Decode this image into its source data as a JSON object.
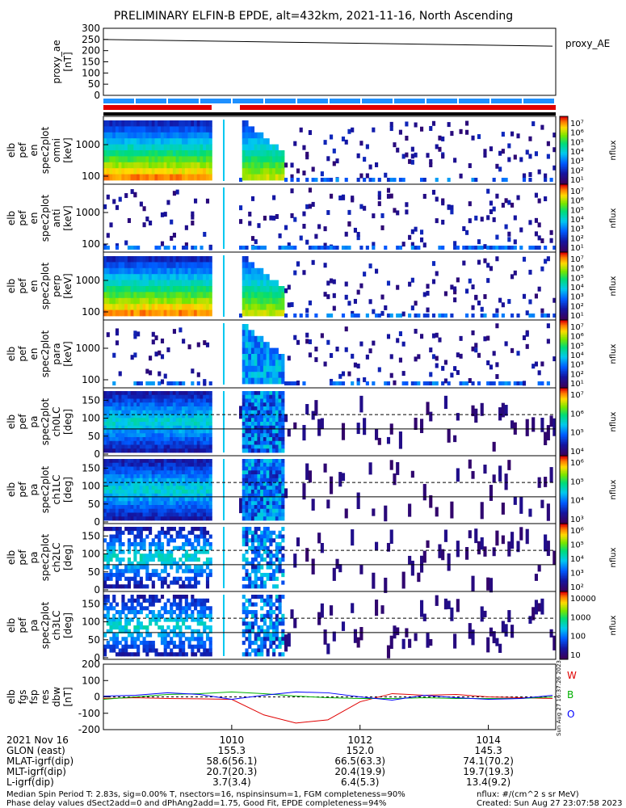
{
  "title": "PRELIMINARY ELFIN-B EPDE, alt=432km, 2021-11-16, North Ascending",
  "proxy_panel": {
    "ylabel": [
      "proxy_ae",
      "[nT]"
    ],
    "legend": "proxy_AE",
    "ylim": [
      0,
      300
    ],
    "yticks": [
      "300",
      "250",
      "200",
      "150",
      "100",
      "50",
      "0"
    ]
  },
  "spectro_panels": [
    {
      "ylabel": [
        "elb",
        "pef",
        "en",
        "spec2plot",
        "omni",
        "[keV]"
      ],
      "yticks": [
        "1000",
        "100"
      ],
      "cbar_ticks": [
        "10⁷",
        "10⁶",
        "10⁵",
        "10⁴",
        "10³",
        "10²",
        "10¹"
      ],
      "cbar_label": "nflux",
      "kind": "energy"
    },
    {
      "ylabel": [
        "elb",
        "pef",
        "en",
        "spec2plot",
        "anti",
        "[keV]"
      ],
      "yticks": [
        "1000",
        "100"
      ],
      "cbar_ticks": [
        "10⁷",
        "10⁶",
        "10⁵",
        "10⁴",
        "10³",
        "10²",
        "10¹"
      ],
      "cbar_label": "nflux",
      "kind": "energy"
    },
    {
      "ylabel": [
        "elb",
        "pef",
        "en",
        "spec2plot",
        "perp",
        "[keV]"
      ],
      "yticks": [
        "1000",
        "100"
      ],
      "cbar_ticks": [
        "10⁷",
        "10⁶",
        "10⁵",
        "10⁴",
        "10³",
        "10²",
        "10¹"
      ],
      "cbar_label": "nflux",
      "kind": "energy"
    },
    {
      "ylabel": [
        "elb",
        "pef",
        "en",
        "spec2plot",
        "para",
        "[keV]"
      ],
      "yticks": [
        "1000",
        "100"
      ],
      "cbar_ticks": [
        "10⁷",
        "10⁶",
        "10⁵",
        "10⁴",
        "10³",
        "10²",
        "10¹"
      ],
      "cbar_label": "nflux",
      "kind": "energy"
    },
    {
      "ylabel": [
        "elb",
        "pef",
        "pa",
        "spec2plot",
        "ch0LC",
        "[deg]"
      ],
      "yticks": [
        "150",
        "100",
        "50",
        "0"
      ],
      "cbar_ticks": [
        "10⁷",
        "10⁶",
        "10⁵",
        "10⁴"
      ],
      "cbar_label": "nflux",
      "kind": "pa"
    },
    {
      "ylabel": [
        "elb",
        "pef",
        "pa",
        "spec2plot",
        "ch1LC",
        "[deg]"
      ],
      "yticks": [
        "150",
        "100",
        "50",
        "0"
      ],
      "cbar_ticks": [
        "10⁶",
        "10⁵",
        "10⁴",
        "10³"
      ],
      "cbar_label": "nflux",
      "kind": "pa"
    },
    {
      "ylabel": [
        "elb",
        "pef",
        "pa",
        "spec2plot",
        "ch2LC",
        "[deg]"
      ],
      "yticks": [
        "150",
        "100",
        "50",
        "0"
      ],
      "cbar_ticks": [
        "10⁶",
        "10⁵",
        "10⁴",
        "10³",
        "10²"
      ],
      "cbar_label": "nflux",
      "kind": "pa"
    },
    {
      "ylabel": [
        "elb",
        "pef",
        "pa",
        "spec2plot",
        "ch3LC",
        "[deg]"
      ],
      "yticks": [
        "150",
        "100",
        "50",
        "0"
      ],
      "cbar_ticks": [
        "10000",
        "1000",
        "100",
        "10"
      ],
      "cbar_label": "nflux",
      "kind": "pa"
    }
  ],
  "bfield_panel": {
    "ylabel": [
      "elb",
      "fgs",
      "fsp",
      "res",
      "dbw",
      "[nT]"
    ],
    "yticks": [
      "200",
      "100",
      "0",
      "-100",
      "-200"
    ],
    "ylim": [
      -200,
      200
    ],
    "legend": [
      {
        "label": "W",
        "color": "#e00000"
      },
      {
        "label": "B",
        "color": "#00b000"
      },
      {
        "label": "O",
        "color": "#0000ff"
      }
    ],
    "side_text": "Sun Aug 27 16:37:26 2023"
  },
  "chart_data": {
    "type": "line",
    "title": "PRELIMINARY ELFIN-B EPDE, alt=432km, 2021-11-16, North Ascending",
    "x_minutes_from_1008": [
      0.0,
      0.5,
      1.0,
      1.5,
      2.0,
      2.5,
      3.0,
      3.5,
      4.0,
      4.5,
      5.0,
      5.5,
      6.0,
      6.5,
      7.0
    ],
    "xlim_minutes_from_1008": [
      0.0,
      7.05
    ],
    "xtick_labels": [
      "1010",
      "1012",
      "1014"
    ],
    "series": [
      {
        "name": "proxy_AE",
        "x": [
          0.0,
          7.0
        ],
        "values": [
          250,
          220
        ]
      },
      {
        "name": "W",
        "color": "#e00000",
        "values": [
          -10,
          -5,
          -10,
          -12,
          -15,
          -110,
          -160,
          -140,
          -30,
          20,
          10,
          15,
          0,
          -5,
          -10
        ]
      },
      {
        "name": "B",
        "color": "#00b000",
        "values": [
          -15,
          0,
          15,
          20,
          30,
          20,
          5,
          -5,
          -10,
          -10,
          -5,
          -10,
          -10,
          -10,
          0
        ]
      },
      {
        "name": "O",
        "color": "#0000ff",
        "values": [
          5,
          10,
          25,
          15,
          -15,
          10,
          30,
          25,
          0,
          -20,
          10,
          -5,
          -15,
          -10,
          10
        ]
      }
    ]
  },
  "orbit_table": {
    "rows": [
      {
        "label": "2021 Nov 16",
        "values": [
          "1010",
          "1012",
          "1014"
        ]
      },
      {
        "label": "GLON (east)",
        "values": [
          "155.3",
          "152.0",
          "145.3"
        ]
      },
      {
        "label": "MLAT-igrf(dip)",
        "values": [
          "58.6(56.1)",
          "66.5(63.3)",
          "74.1(70.2)"
        ]
      },
      {
        "label": "MLT-igrf(dip)",
        "values": [
          "20.7(20.3)",
          "20.4(19.9)",
          "19.7(19.3)"
        ]
      },
      {
        "label": "L-igrf(dip)",
        "values": [
          "3.7(3.4)",
          "6.4(5.3)",
          "13.4(9.2)"
        ]
      }
    ]
  },
  "footer": {
    "line1": "Median Spin Period T: 2.83s, sig=0.00% T, nsectors=16, nspinsinsum=1, FGM completeness=90%",
    "line2": "Phase delay values dSect2add=0 and dPhAng2add=1.75, Good Fit, EPDE completeness=94%",
    "units": "nflux: #/(cm^2 s sr MeV)",
    "created": "Created: Sun Aug 27 23:07:58 2023"
  },
  "colors": {
    "bar_blue": "#1e90ff",
    "bar_red": "#e00000",
    "bar_black": "#000000"
  }
}
